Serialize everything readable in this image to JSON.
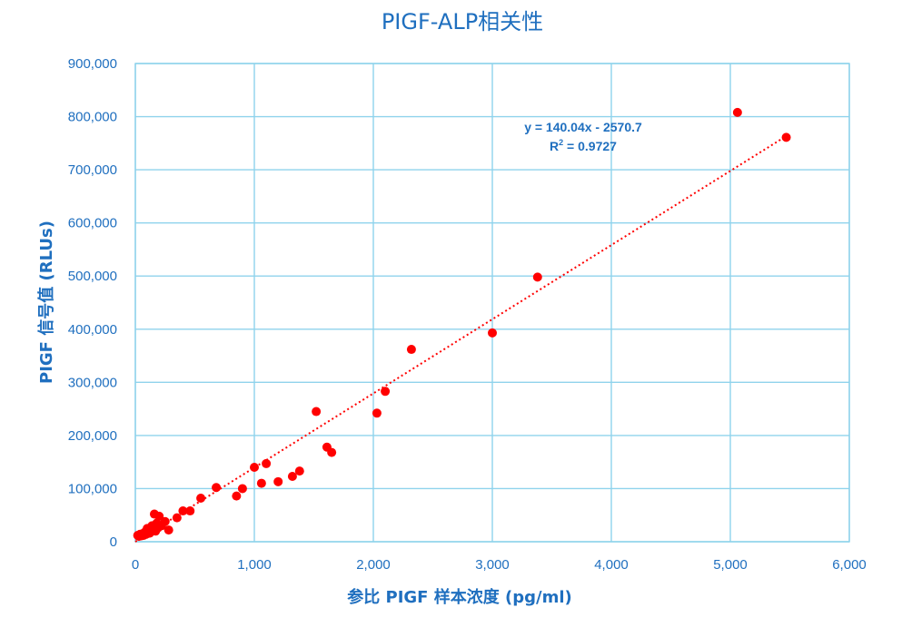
{
  "chart_data": {
    "type": "scatter",
    "title": "PIGF-ALP相关性",
    "xlabel": "参比 PIGF 样本浓度 (pg/ml)",
    "ylabel": "PIGF 信号值 (RLUs)",
    "xlim": [
      0,
      6000
    ],
    "ylim": [
      0,
      900000
    ],
    "x_ticks": [
      "0",
      "1,000",
      "2,000",
      "3,000",
      "4,000",
      "5,000",
      "6,000"
    ],
    "y_ticks": [
      "0",
      "100,000",
      "200,000",
      "300,000",
      "400,000",
      "500,000",
      "600,000",
      "700,000",
      "800,000",
      "900,000"
    ],
    "grid": true,
    "legend": "none",
    "series": [
      {
        "points": [
          [
            20,
            12000
          ],
          [
            30,
            10000
          ],
          [
            40,
            14000
          ],
          [
            50,
            11000
          ],
          [
            60,
            15000
          ],
          [
            70,
            12000
          ],
          [
            80,
            18000
          ],
          [
            90,
            14000
          ],
          [
            100,
            25000
          ],
          [
            110,
            20000
          ],
          [
            120,
            16000
          ],
          [
            140,
            30000
          ],
          [
            160,
            52000
          ],
          [
            170,
            20000
          ],
          [
            180,
            35000
          ],
          [
            190,
            26000
          ],
          [
            200,
            48000
          ],
          [
            220,
            30000
          ],
          [
            250,
            38000
          ],
          [
            280,
            22000
          ],
          [
            350,
            45000
          ],
          [
            400,
            58000
          ],
          [
            460,
            58000
          ],
          [
            550,
            82000
          ],
          [
            680,
            102000
          ],
          [
            850,
            86000
          ],
          [
            900,
            100000
          ],
          [
            1000,
            140000
          ],
          [
            1060,
            110000
          ],
          [
            1100,
            147000
          ],
          [
            1200,
            113000
          ],
          [
            1320,
            123000
          ],
          [
            1380,
            133000
          ],
          [
            1520,
            245000
          ],
          [
            1610,
            178000
          ],
          [
            1650,
            168000
          ],
          [
            2030,
            242000
          ],
          [
            2100,
            283000
          ],
          [
            2320,
            362000
          ],
          [
            3000,
            393000
          ],
          [
            3380,
            498000
          ],
          [
            5060,
            808000
          ],
          [
            5470,
            761000
          ]
        ]
      }
    ],
    "trendline": {
      "type": "linear",
      "slope": 140.04,
      "intercept": -2570.7,
      "x_range": [
        0,
        5470
      ],
      "equation": "y = 140.04x - 2570.7",
      "r2_label": "R",
      "r2_superscript": "2",
      "r2_value": " = 0.9727"
    },
    "colors": {
      "text": "#1f6fbf",
      "grid": "#8fd3ec",
      "points": "#ff0000",
      "trendline": "#ff0000"
    }
  }
}
